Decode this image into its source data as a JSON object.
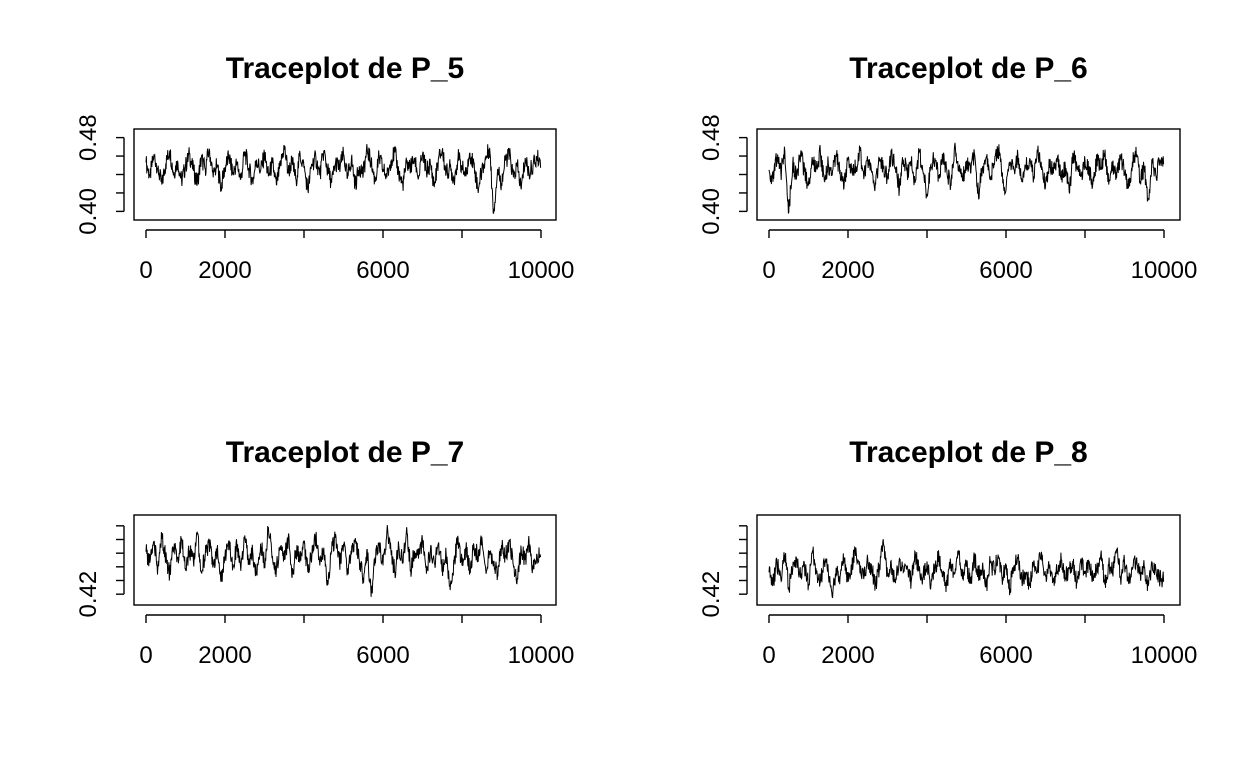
{
  "chart_data": [
    {
      "type": "line",
      "title": "Traceplot de P_5",
      "xlabel": "",
      "ylabel": "",
      "xlim": [
        0,
        10000
      ],
      "ylim": [
        0.395,
        0.485
      ],
      "x_ticks": [
        0,
        2000,
        4000,
        6000,
        8000,
        10000
      ],
      "x_tick_labels": [
        "0",
        "2000",
        "",
        "6000",
        "",
        "10000"
      ],
      "y_ticks": [
        0.4,
        0.42,
        0.44,
        0.46,
        0.48
      ],
      "y_tick_labels": [
        "0.40",
        "",
        "",
        "",
        "0.48"
      ],
      "grid": false,
      "series": [
        {
          "n_iterations": 10000,
          "x_step": 100,
          "values": [
            0.453,
            0.438,
            0.461,
            0.447,
            0.429,
            0.452,
            0.466,
            0.441,
            0.455,
            0.433,
            0.449,
            0.462,
            0.444,
            0.431,
            0.457,
            0.446,
            0.468,
            0.437,
            0.451,
            0.426,
            0.448,
            0.459,
            0.441,
            0.453,
            0.435,
            0.465,
            0.447,
            0.432,
            0.456,
            0.444,
            0.461,
            0.438,
            0.452,
            0.429,
            0.449,
            0.471,
            0.442,
            0.455,
            0.434,
            0.462,
            0.447,
            0.423,
            0.451,
            0.458,
            0.439,
            0.466,
            0.444,
            0.431,
            0.453,
            0.447,
            0.462,
            0.436,
            0.457,
            0.428,
            0.449,
            0.441,
            0.468,
            0.452,
            0.433,
            0.459,
            0.446,
            0.437,
            0.455,
            0.464,
            0.441,
            0.429,
            0.452,
            0.448,
            0.458,
            0.436,
            0.462,
            0.444,
            0.451,
            0.427,
            0.456,
            0.466,
            0.441,
            0.448,
            0.434,
            0.459,
            0.447,
            0.438,
            0.463,
            0.452,
            0.425,
            0.444,
            0.457,
            0.469,
            0.398,
            0.446,
            0.431,
            0.455,
            0.462,
            0.437,
            0.449,
            0.424,
            0.458,
            0.441,
            0.451,
            0.457
          ]
        }
      ]
    },
    {
      "type": "line",
      "title": "Traceplot de P_6",
      "xlabel": "",
      "ylabel": "",
      "xlim": [
        0,
        10000
      ],
      "ylim": [
        0.395,
        0.485
      ],
      "x_ticks": [
        0,
        2000,
        4000,
        6000,
        8000,
        10000
      ],
      "x_tick_labels": [
        "0",
        "2000",
        "",
        "6000",
        "",
        "10000"
      ],
      "y_ticks": [
        0.4,
        0.42,
        0.44,
        0.46,
        0.48
      ],
      "y_tick_labels": [
        "0.40",
        "",
        "",
        "",
        "0.48"
      ],
      "grid": false,
      "series": [
        {
          "n_iterations": 10000,
          "x_step": 100,
          "values": [
            0.445,
            0.432,
            0.459,
            0.441,
            0.466,
            0.399,
            0.451,
            0.437,
            0.462,
            0.443,
            0.428,
            0.455,
            0.447,
            0.464,
            0.433,
            0.452,
            0.439,
            0.461,
            0.445,
            0.426,
            0.457,
            0.441,
            0.449,
            0.467,
            0.435,
            0.454,
            0.442,
            0.429,
            0.458,
            0.446,
            0.437,
            0.463,
            0.448,
            0.424,
            0.456,
            0.441,
            0.452,
            0.431,
            0.466,
            0.443,
            0.419,
            0.451,
            0.458,
            0.437,
            0.462,
            0.445,
            0.428,
            0.471,
            0.449,
            0.433,
            0.455,
            0.442,
            0.463,
            0.418,
            0.447,
            0.459,
            0.436,
            0.452,
            0.469,
            0.441,
            0.423,
            0.454,
            0.446,
            0.461,
            0.432,
            0.449,
            0.457,
            0.438,
            0.464,
            0.445,
            0.427,
            0.453,
            0.441,
            0.458,
            0.434,
            0.449,
            0.421,
            0.462,
            0.446,
            0.439,
            0.455,
            0.443,
            0.431,
            0.457,
            0.447,
            0.464,
            0.429,
            0.451,
            0.436,
            0.459,
            0.442,
            0.425,
            0.454,
            0.461,
            0.433,
            0.448,
            0.414,
            0.452,
            0.438,
            0.456
          ]
        }
      ]
    },
    {
      "type": "line",
      "title": "Traceplot de P_7",
      "xlabel": "",
      "ylabel": "",
      "xlim": [
        0,
        10000
      ],
      "ylim": [
        0.415,
        0.475
      ],
      "x_ticks": [
        0,
        2000,
        4000,
        6000,
        8000,
        10000
      ],
      "x_tick_labels": [
        "0",
        "2000",
        "",
        "6000",
        "",
        "10000"
      ],
      "y_ticks": [
        0.42,
        0.43,
        0.44,
        0.45,
        0.46,
        0.47
      ],
      "y_tick_labels": [
        "0.42",
        "",
        "",
        "",
        "",
        ""
      ],
      "grid": false,
      "series": [
        {
          "n_iterations": 10000,
          "x_step": 100,
          "values": [
            0.451,
            0.443,
            0.458,
            0.439,
            0.462,
            0.447,
            0.435,
            0.454,
            0.446,
            0.461,
            0.438,
            0.452,
            0.444,
            0.465,
            0.436,
            0.449,
            0.457,
            0.441,
            0.453,
            0.429,
            0.448,
            0.459,
            0.442,
            0.455,
            0.437,
            0.463,
            0.446,
            0.451,
            0.434,
            0.457,
            0.443,
            0.469,
            0.448,
            0.438,
            0.455,
            0.445,
            0.461,
            0.432,
            0.452,
            0.447,
            0.458,
            0.436,
            0.449,
            0.462,
            0.441,
            0.454,
            0.427,
            0.451,
            0.464,
            0.443,
            0.456,
            0.438,
            0.449,
            0.461,
            0.445,
            0.432,
            0.453,
            0.418,
            0.447,
            0.458,
            0.441,
            0.466,
            0.452,
            0.436,
            0.455,
            0.444,
            0.469,
            0.438,
            0.451,
            0.446,
            0.459,
            0.435,
            0.452,
            0.443,
            0.457,
            0.438,
            0.449,
            0.423,
            0.445,
            0.461,
            0.441,
            0.454,
            0.437,
            0.456,
            0.448,
            0.462,
            0.438,
            0.451,
            0.443,
            0.434,
            0.456,
            0.447,
            0.459,
            0.441,
            0.432,
            0.452,
            0.445,
            0.458,
            0.438,
            0.449
          ]
        }
      ]
    },
    {
      "type": "line",
      "title": "Traceplot de P_8",
      "xlabel": "",
      "ylabel": "",
      "xlim": [
        0,
        10000
      ],
      "ylim": [
        0.415,
        0.475
      ],
      "x_ticks": [
        0,
        2000,
        4000,
        6000,
        8000,
        10000
      ],
      "x_tick_labels": [
        "0",
        "2000",
        "",
        "6000",
        "",
        "10000"
      ],
      "y_ticks": [
        0.42,
        0.43,
        0.44,
        0.45,
        0.46,
        0.47
      ],
      "y_tick_labels": [
        "0.42",
        "",
        "",
        "",
        "",
        ""
      ],
      "grid": false,
      "series": [
        {
          "n_iterations": 10000,
          "x_step": 100,
          "values": [
            0.436,
            0.428,
            0.443,
            0.431,
            0.449,
            0.425,
            0.438,
            0.446,
            0.432,
            0.441,
            0.427,
            0.452,
            0.435,
            0.429,
            0.444,
            0.437,
            0.418,
            0.439,
            0.433,
            0.447,
            0.429,
            0.441,
            0.454,
            0.436,
            0.431,
            0.445,
            0.438,
            0.426,
            0.442,
            0.457,
            0.434,
            0.439,
            0.428,
            0.446,
            0.436,
            0.441,
            0.429,
            0.451,
            0.437,
            0.432,
            0.444,
            0.427,
            0.439,
            0.448,
            0.434,
            0.426,
            0.442,
            0.436,
            0.452,
            0.431,
            0.441,
            0.428,
            0.446,
            0.435,
            0.439,
            0.425,
            0.443,
            0.437,
            0.449,
            0.432,
            0.438,
            0.424,
            0.441,
            0.446,
            0.431,
            0.436,
            0.427,
            0.444,
            0.438,
            0.451,
            0.433,
            0.441,
            0.429,
            0.437,
            0.445,
            0.432,
            0.439,
            0.441,
            0.428,
            0.446,
            0.436,
            0.442,
            0.431,
            0.438,
            0.449,
            0.427,
            0.441,
            0.436,
            0.453,
            0.432,
            0.444,
            0.429,
            0.438,
            0.446,
            0.434,
            0.439,
            0.426,
            0.443,
            0.437,
            0.431
          ]
        }
      ]
    }
  ]
}
